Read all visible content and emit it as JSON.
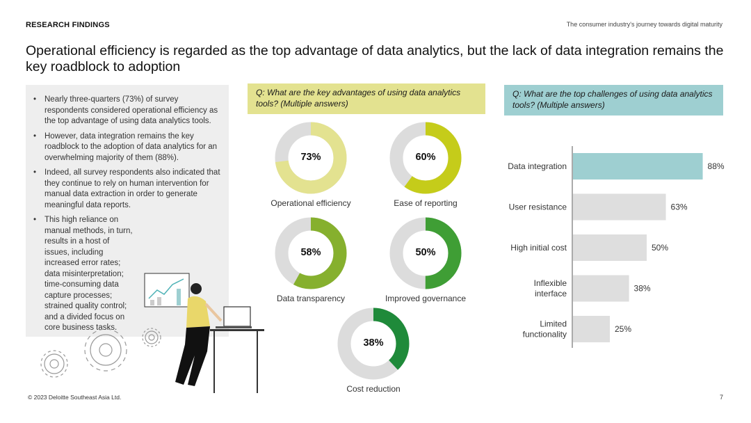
{
  "header": {
    "section_label": "RESEARCH FINDINGS",
    "doc_title": "The consumer industry's journey towards digital maturity"
  },
  "headline": "Operational efficiency is regarded as the top advantage of data analytics, but the lack of data integration remains the key roadblock to adoption",
  "bullets": [
    "Nearly three-quarters (73%) of survey respondents considered operational efficiency as the top advantage of using data analytics tools.",
    "However, data integration remains the key roadblock to the adoption of data analytics for an overwhelming majority of them (88%).",
    "Indeed, all survey respondents also indicated that they continue to rely on human intervention for manual data extraction in order to generate meaningful data reports.",
    "This high reliance on manual methods, in turn, results in a host of issues, including increased error rates; data misinterpretation; time-consuming data capture processes; strained quality control; and a divided focus on core business tasks."
  ],
  "questions": {
    "advantages": "Q: What are the key advantages of using data analytics tools? (Multiple answers)",
    "challenges": "Q: What are the top challenges of using data analytics tools? (Multiple answers)"
  },
  "colors": {
    "track": "#dcdcdc",
    "bar_grey": "#dedede",
    "bar_highlight": "#9ecfd1",
    "q1_bg": "#e3e290",
    "q2_bg": "#9ecfd1"
  },
  "chart_data": [
    {
      "type": "pie",
      "variant": "donut-set",
      "items": [
        {
          "label": "Operational efficiency",
          "value": 73,
          "display": "73%",
          "color": "#e3e290"
        },
        {
          "label": "Ease of reporting",
          "value": 60,
          "display": "60%",
          "color": "#c5cc1a"
        },
        {
          "label": "Data transparency",
          "value": 58,
          "display": "58%",
          "color": "#86b02e"
        },
        {
          "label": "Improved governance",
          "value": 50,
          "display": "50%",
          "color": "#3f9e35"
        },
        {
          "label": "Cost reduction",
          "value": 38,
          "display": "38%",
          "color": "#1f8a3a"
        }
      ]
    },
    {
      "type": "bar",
      "orientation": "horizontal",
      "categories": [
        "Data integration",
        "User resistance",
        "High initial cost",
        "Inflexible interface",
        "Limited functionality"
      ],
      "category_lines": [
        [
          "Data integration"
        ],
        [
          "User resistance"
        ],
        [
          "High initial cost"
        ],
        [
          "Inflexible",
          "interface"
        ],
        [
          "Limited",
          "functionality"
        ]
      ],
      "values": [
        88,
        63,
        50,
        38,
        25
      ],
      "value_labels": [
        "88%",
        "63%",
        "50%",
        "38%",
        "25%"
      ],
      "highlight_index": 0,
      "xlim": [
        0,
        100
      ]
    }
  ],
  "footer": {
    "copyright": "© 2023 Deloitte Southeast Asia Ltd.",
    "page_number": "7"
  }
}
